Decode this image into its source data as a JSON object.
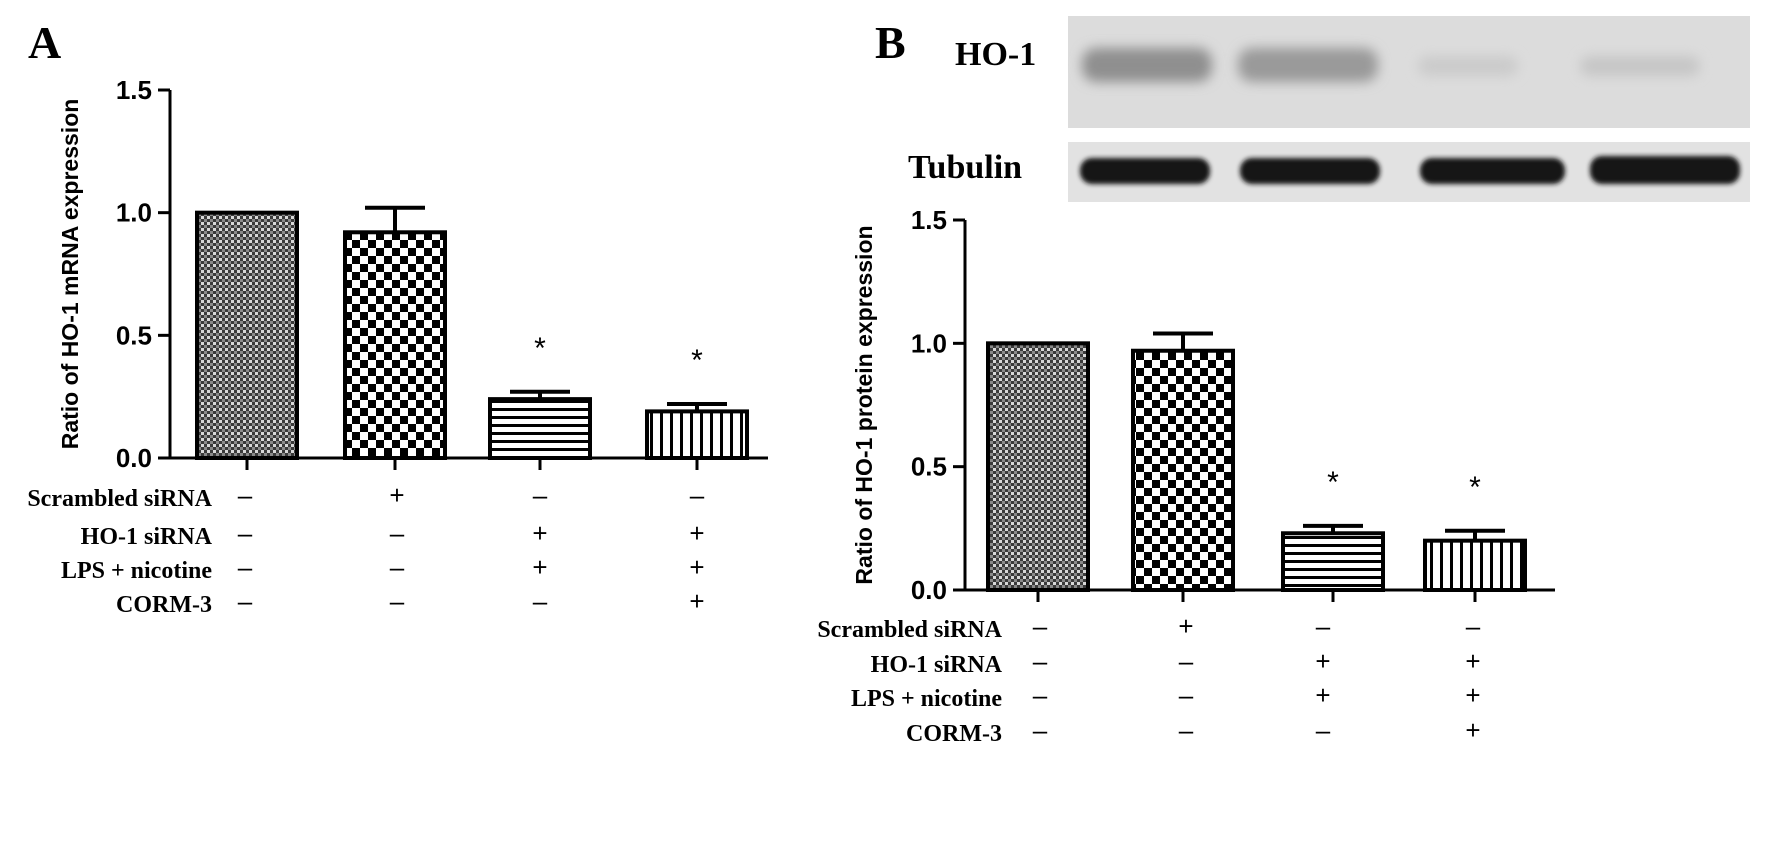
{
  "chart_data": [
    {
      "panel": "A",
      "type": "bar",
      "ylabel": "Ratio of HO-1 mRNA expression",
      "ylim": [
        0,
        1.5
      ],
      "yticks": [
        "0.0",
        "0.5",
        "1.0",
        "1.5"
      ],
      "values": [
        1.0,
        0.92,
        0.24,
        0.19
      ],
      "errors": [
        0.0,
        0.1,
        0.03,
        0.03
      ],
      "significance": [
        "",
        "",
        "*",
        "*"
      ],
      "conditions": [
        {
          "label": "Scrambled siRNA",
          "signs": [
            "–",
            "+",
            "–",
            "–"
          ]
        },
        {
          "label": "HO-1 siRNA",
          "signs": [
            "–",
            "–",
            "+",
            "+"
          ]
        },
        {
          "label": "LPS + nicotine",
          "signs": [
            "–",
            "–",
            "+",
            "+"
          ]
        },
        {
          "label": "CORM-3",
          "signs": [
            "–",
            "–",
            "–",
            "+"
          ]
        }
      ]
    },
    {
      "panel": "B",
      "type": "bar",
      "ylabel": "Ratio of HO-1 protein expression",
      "ylim": [
        0,
        1.5
      ],
      "yticks": [
        "0.0",
        "0.5",
        "1.0",
        "1.5"
      ],
      "values": [
        1.0,
        0.97,
        0.23,
        0.2
      ],
      "errors": [
        0.0,
        0.07,
        0.03,
        0.04
      ],
      "significance": [
        "",
        "",
        "*",
        "*"
      ],
      "blot_labels": [
        "HO-1",
        "Tubulin"
      ],
      "conditions": [
        {
          "label": "Scrambled siRNA",
          "signs": [
            "–",
            "+",
            "–",
            "–"
          ]
        },
        {
          "label": "HO-1 siRNA",
          "signs": [
            "–",
            "–",
            "+",
            "+"
          ]
        },
        {
          "label": "LPS + nicotine",
          "signs": [
            "–",
            "–",
            "+",
            "+"
          ]
        },
        {
          "label": "CORM-3",
          "signs": [
            "–",
            "–",
            "–",
            "+"
          ]
        }
      ]
    }
  ]
}
